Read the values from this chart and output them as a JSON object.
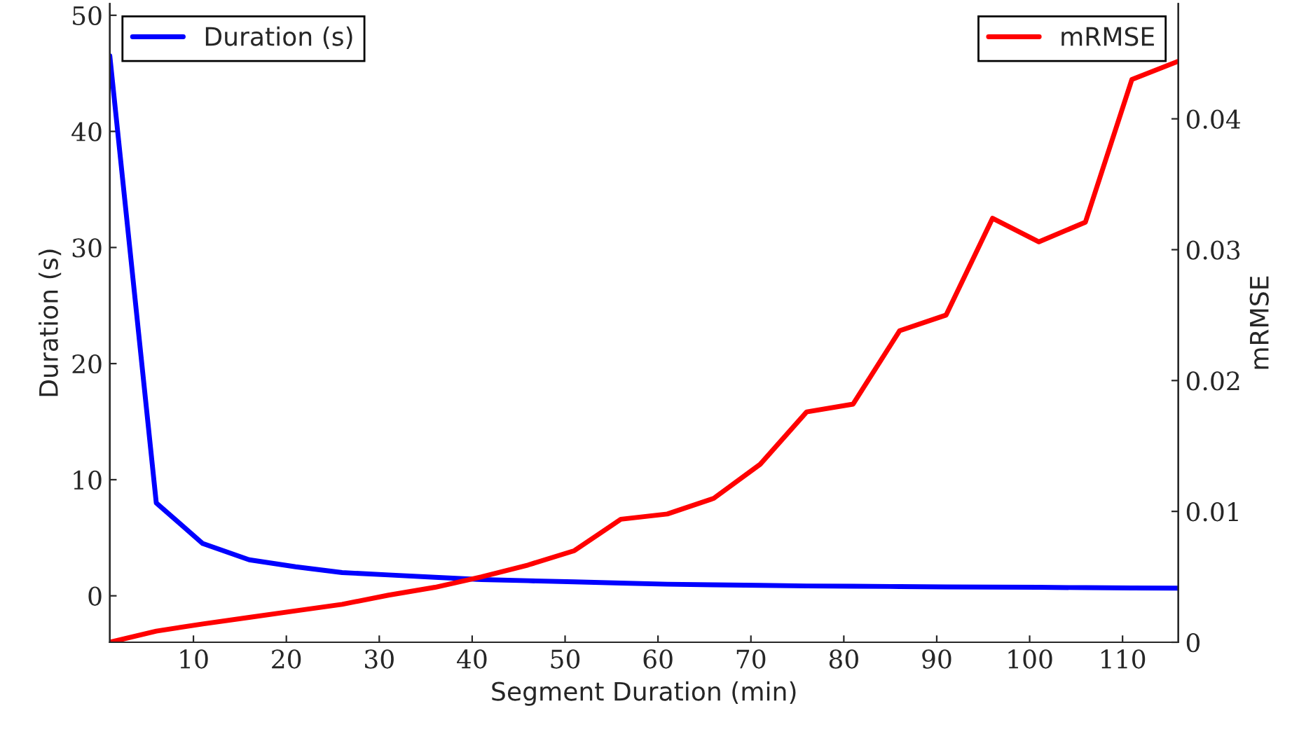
{
  "chart_data": {
    "type": "line",
    "xlabel": "Segment Duration (min)",
    "ylabel": "Duration (s)",
    "y2label": "mRMSE",
    "x": [
      1,
      6,
      11,
      16,
      21,
      26,
      31,
      36,
      41,
      46,
      51,
      56,
      61,
      66,
      71,
      76,
      81,
      86,
      91,
      96,
      101,
      106,
      111,
      116
    ],
    "series": [
      {
        "name": "Duration (s)",
        "color": "#0000ff",
        "values": [
          46.5,
          8.0,
          4.5,
          3.1,
          2.5,
          2.0,
          1.8,
          1.6,
          1.4,
          1.3,
          1.2,
          1.1,
          1.0,
          0.95,
          0.9,
          0.85,
          0.82,
          0.8,
          0.77,
          0.75,
          0.73,
          0.7,
          0.68,
          0.66
        ]
      },
      {
        "name": "mRMSE",
        "color": "#ff0000",
        "axis": "y2",
        "values": [
          0,
          0.00085,
          0.0014,
          0.0019,
          0.0024,
          0.0029,
          0.0036,
          0.0042,
          0.005,
          0.0059,
          0.007,
          0.0094,
          0.0098,
          0.011,
          0.0136,
          0.0176,
          0.0182,
          0.0238,
          0.025,
          0.0324,
          0.0306,
          0.0321,
          0.043,
          0.0444
        ]
      }
    ],
    "xlim": [
      1,
      116
    ],
    "xticks": [
      10,
      20,
      30,
      40,
      50,
      60,
      70,
      80,
      90,
      100,
      110
    ],
    "ylim": [
      -4,
      51
    ],
    "yticks": [
      0,
      10,
      20,
      30,
      40,
      50
    ],
    "y2lim": [
      0,
      0.0488
    ],
    "y2ticks": [
      0,
      0.01,
      0.02,
      0.03,
      0.04
    ],
    "grid": false,
    "legend": "top",
    "line_style": "solid",
    "marker": "none"
  }
}
